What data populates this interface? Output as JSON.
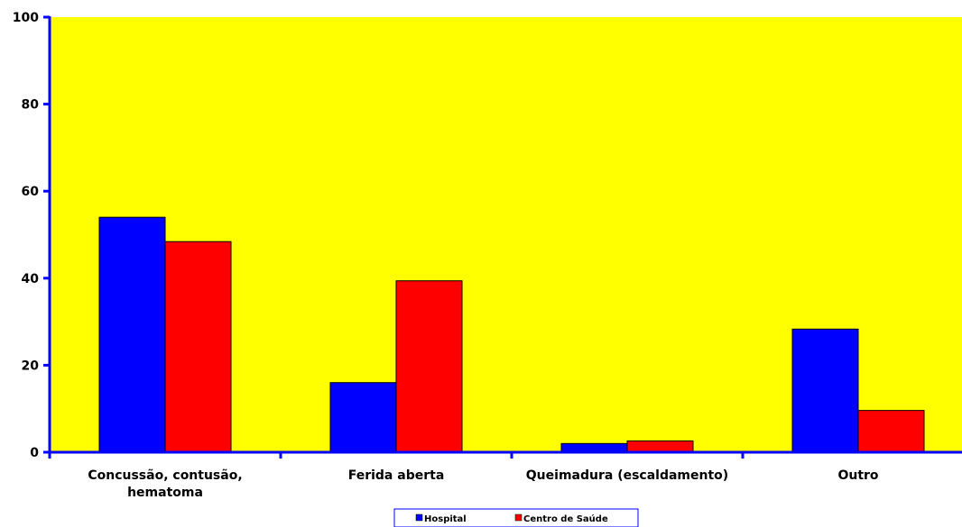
{
  "chart_data": {
    "type": "bar",
    "categories": [
      [
        "Concussão, contusão,",
        "hematoma"
      ],
      [
        "Ferida aberta"
      ],
      [
        "Queimadura (escaldamento)"
      ],
      [
        "Outro"
      ]
    ],
    "series": [
      {
        "name": "Hospital",
        "color": "#0000ff",
        "values": [
          54,
          16,
          2,
          28.3
        ]
      },
      {
        "name": "Centro de Saúde",
        "color": "#ff0000",
        "values": [
          48.4,
          39.4,
          2.6,
          9.6
        ]
      }
    ],
    "ylim": [
      0,
      100
    ],
    "yticks": [
      0,
      20,
      40,
      60,
      80,
      100
    ],
    "plot_background": "#ffff00",
    "axis_color": "#0000ff",
    "grid": false,
    "legend_position": "bottom-center"
  }
}
